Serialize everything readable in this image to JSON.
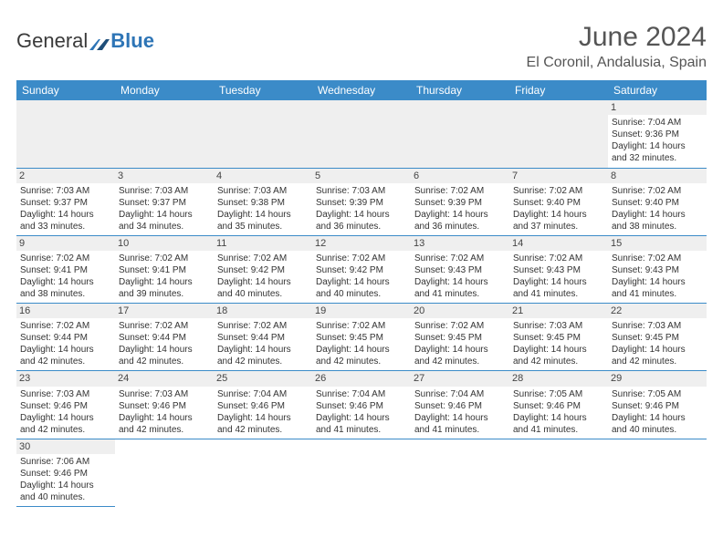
{
  "brand": {
    "part1": "General",
    "part2": "Blue"
  },
  "title": "June 2024",
  "location": "El Coronil, Andalusia, Spain",
  "colors": {
    "header_bg": "#3b8bc8",
    "header_text": "#ffffff",
    "daynum_bg": "#efefef",
    "border": "#3b8bc8",
    "brand_blue": "#2e75b6"
  },
  "weekdays": [
    "Sunday",
    "Monday",
    "Tuesday",
    "Wednesday",
    "Thursday",
    "Friday",
    "Saturday"
  ],
  "weeks": [
    [
      null,
      null,
      null,
      null,
      null,
      null,
      {
        "n": "1",
        "sr": "7:04 AM",
        "ss": "9:36 PM",
        "dl": "14 hours and 32 minutes."
      }
    ],
    [
      {
        "n": "2",
        "sr": "7:03 AM",
        "ss": "9:37 PM",
        "dl": "14 hours and 33 minutes."
      },
      {
        "n": "3",
        "sr": "7:03 AM",
        "ss": "9:37 PM",
        "dl": "14 hours and 34 minutes."
      },
      {
        "n": "4",
        "sr": "7:03 AM",
        "ss": "9:38 PM",
        "dl": "14 hours and 35 minutes."
      },
      {
        "n": "5",
        "sr": "7:03 AM",
        "ss": "9:39 PM",
        "dl": "14 hours and 36 minutes."
      },
      {
        "n": "6",
        "sr": "7:02 AM",
        "ss": "9:39 PM",
        "dl": "14 hours and 36 minutes."
      },
      {
        "n": "7",
        "sr": "7:02 AM",
        "ss": "9:40 PM",
        "dl": "14 hours and 37 minutes."
      },
      {
        "n": "8",
        "sr": "7:02 AM",
        "ss": "9:40 PM",
        "dl": "14 hours and 38 minutes."
      }
    ],
    [
      {
        "n": "9",
        "sr": "7:02 AM",
        "ss": "9:41 PM",
        "dl": "14 hours and 38 minutes."
      },
      {
        "n": "10",
        "sr": "7:02 AM",
        "ss": "9:41 PM",
        "dl": "14 hours and 39 minutes."
      },
      {
        "n": "11",
        "sr": "7:02 AM",
        "ss": "9:42 PM",
        "dl": "14 hours and 40 minutes."
      },
      {
        "n": "12",
        "sr": "7:02 AM",
        "ss": "9:42 PM",
        "dl": "14 hours and 40 minutes."
      },
      {
        "n": "13",
        "sr": "7:02 AM",
        "ss": "9:43 PM",
        "dl": "14 hours and 41 minutes."
      },
      {
        "n": "14",
        "sr": "7:02 AM",
        "ss": "9:43 PM",
        "dl": "14 hours and 41 minutes."
      },
      {
        "n": "15",
        "sr": "7:02 AM",
        "ss": "9:43 PM",
        "dl": "14 hours and 41 minutes."
      }
    ],
    [
      {
        "n": "16",
        "sr": "7:02 AM",
        "ss": "9:44 PM",
        "dl": "14 hours and 42 minutes."
      },
      {
        "n": "17",
        "sr": "7:02 AM",
        "ss": "9:44 PM",
        "dl": "14 hours and 42 minutes."
      },
      {
        "n": "18",
        "sr": "7:02 AM",
        "ss": "9:44 PM",
        "dl": "14 hours and 42 minutes."
      },
      {
        "n": "19",
        "sr": "7:02 AM",
        "ss": "9:45 PM",
        "dl": "14 hours and 42 minutes."
      },
      {
        "n": "20",
        "sr": "7:02 AM",
        "ss": "9:45 PM",
        "dl": "14 hours and 42 minutes."
      },
      {
        "n": "21",
        "sr": "7:03 AM",
        "ss": "9:45 PM",
        "dl": "14 hours and 42 minutes."
      },
      {
        "n": "22",
        "sr": "7:03 AM",
        "ss": "9:45 PM",
        "dl": "14 hours and 42 minutes."
      }
    ],
    [
      {
        "n": "23",
        "sr": "7:03 AM",
        "ss": "9:46 PM",
        "dl": "14 hours and 42 minutes."
      },
      {
        "n": "24",
        "sr": "7:03 AM",
        "ss": "9:46 PM",
        "dl": "14 hours and 42 minutes."
      },
      {
        "n": "25",
        "sr": "7:04 AM",
        "ss": "9:46 PM",
        "dl": "14 hours and 42 minutes."
      },
      {
        "n": "26",
        "sr": "7:04 AM",
        "ss": "9:46 PM",
        "dl": "14 hours and 41 minutes."
      },
      {
        "n": "27",
        "sr": "7:04 AM",
        "ss": "9:46 PM",
        "dl": "14 hours and 41 minutes."
      },
      {
        "n": "28",
        "sr": "7:05 AM",
        "ss": "9:46 PM",
        "dl": "14 hours and 41 minutes."
      },
      {
        "n": "29",
        "sr": "7:05 AM",
        "ss": "9:46 PM",
        "dl": "14 hours and 40 minutes."
      }
    ],
    [
      {
        "n": "30",
        "sr": "7:06 AM",
        "ss": "9:46 PM",
        "dl": "14 hours and 40 minutes."
      },
      null,
      null,
      null,
      null,
      null,
      null
    ]
  ],
  "labels": {
    "sunrise": "Sunrise:",
    "sunset": "Sunset:",
    "daylight": "Daylight:"
  }
}
